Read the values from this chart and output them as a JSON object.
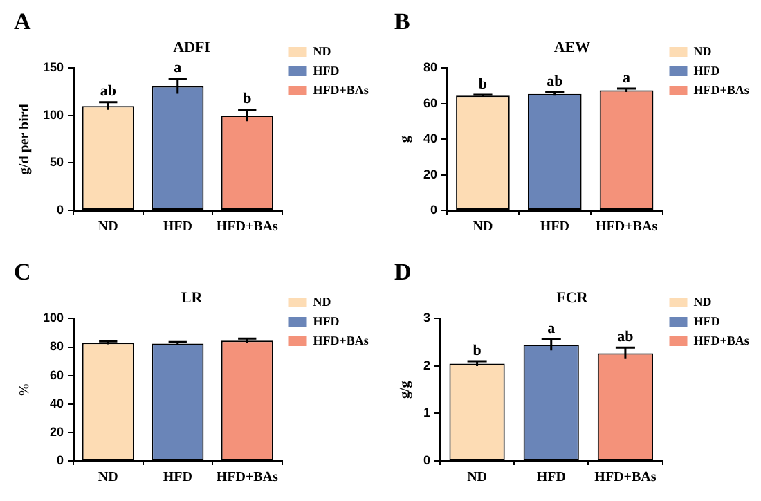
{
  "chart_data": [
    {
      "type": "bar",
      "title": "ADFI",
      "ylabel": "g/d per bird",
      "categories": [
        "ND",
        "HFD",
        "HFD+BAs"
      ],
      "series": [
        {
          "name": "ND",
          "color": "#fddcb4",
          "values": [
            110,
            null,
            null
          ],
          "errors": [
            4,
            null,
            null
          ]
        },
        {
          "name": "HFD",
          "color": "#6a85b8",
          "values": [
            null,
            131,
            null
          ],
          "errors": [
            null,
            8,
            null
          ]
        },
        {
          "name": "HFD+BAs",
          "color": "#f4927a",
          "values": [
            null,
            null,
            100
          ],
          "errors": [
            null,
            null,
            6
          ]
        }
      ],
      "ylim": [
        0,
        150
      ],
      "yticks": [
        0,
        50,
        100,
        150
      ],
      "legend": "right",
      "annotations": [
        "A",
        {
          "text": "ab",
          "x": "ND",
          "y": 114
        },
        {
          "text": "a",
          "x": "HFD",
          "y": 139
        },
        {
          "text": "b",
          "x": "HFD+BAs",
          "y": 106
        }
      ]
    },
    {
      "type": "bar",
      "title": "AEW",
      "ylabel": "g",
      "categories": [
        "ND",
        "HFD",
        "HFD+BAs"
      ],
      "series": [
        {
          "name": "ND",
          "color": "#fddcb4",
          "values": [
            64.5,
            null,
            null
          ],
          "errors": [
            0.5,
            null,
            null
          ]
        },
        {
          "name": "HFD",
          "color": "#6a85b8",
          "values": [
            null,
            65.5,
            null
          ],
          "errors": [
            null,
            1,
            null
          ]
        },
        {
          "name": "HFD+BAs",
          "color": "#f4927a",
          "values": [
            null,
            null,
            67.5
          ],
          "errors": [
            null,
            null,
            1
          ]
        }
      ],
      "ylim": [
        0,
        80
      ],
      "yticks": [
        0,
        20,
        40,
        60,
        80
      ],
      "legend": "right",
      "annotations": [
        "B",
        {
          "text": "b",
          "x": "ND",
          "y": 65
        },
        {
          "text": "ab",
          "x": "HFD",
          "y": 66.5
        },
        {
          "text": "a",
          "x": "HFD+BAs",
          "y": 68.5
        }
      ]
    },
    {
      "type": "bar",
      "title": "LR",
      "ylabel": "%",
      "categories": [
        "ND",
        "HFD",
        "HFD+BAs"
      ],
      "series": [
        {
          "name": "ND",
          "color": "#fddcb4",
          "values": [
            83,
            null,
            null
          ],
          "errors": [
            1,
            null,
            null
          ]
        },
        {
          "name": "HFD",
          "color": "#6a85b8",
          "values": [
            null,
            82.5,
            null
          ],
          "errors": [
            null,
            1,
            null
          ]
        },
        {
          "name": "HFD+BAs",
          "color": "#f4927a",
          "values": [
            null,
            null,
            84.5
          ],
          "errors": [
            null,
            null,
            1.5
          ]
        }
      ],
      "ylim": [
        0,
        100
      ],
      "yticks": [
        0,
        20,
        40,
        60,
        80,
        100
      ],
      "legend": "right",
      "annotations": [
        "C"
      ]
    },
    {
      "type": "bar",
      "title": "FCR",
      "ylabel": "g/g",
      "categories": [
        "ND",
        "HFD",
        "HFD+BAs"
      ],
      "series": [
        {
          "name": "ND",
          "color": "#fddcb4",
          "values": [
            2.05,
            null,
            null
          ],
          "errors": [
            0.05,
            null,
            null
          ]
        },
        {
          "name": "HFD",
          "color": "#6a85b8",
          "values": [
            null,
            2.45,
            null
          ],
          "errors": [
            null,
            0.12,
            null
          ]
        },
        {
          "name": "HFD+BAs",
          "color": "#f4927a",
          "values": [
            null,
            null,
            2.27
          ],
          "errors": [
            null,
            null,
            0.12
          ]
        }
      ],
      "ylim": [
        0,
        3
      ],
      "yticks": [
        0,
        1,
        2,
        3
      ],
      "legend": "right",
      "annotations": [
        "D",
        {
          "text": "b",
          "x": "ND",
          "y": 2.1
        },
        {
          "text": "a",
          "x": "HFD",
          "y": 2.57
        },
        {
          "text": "ab",
          "x": "HFD+BAs",
          "y": 2.39
        }
      ]
    }
  ]
}
